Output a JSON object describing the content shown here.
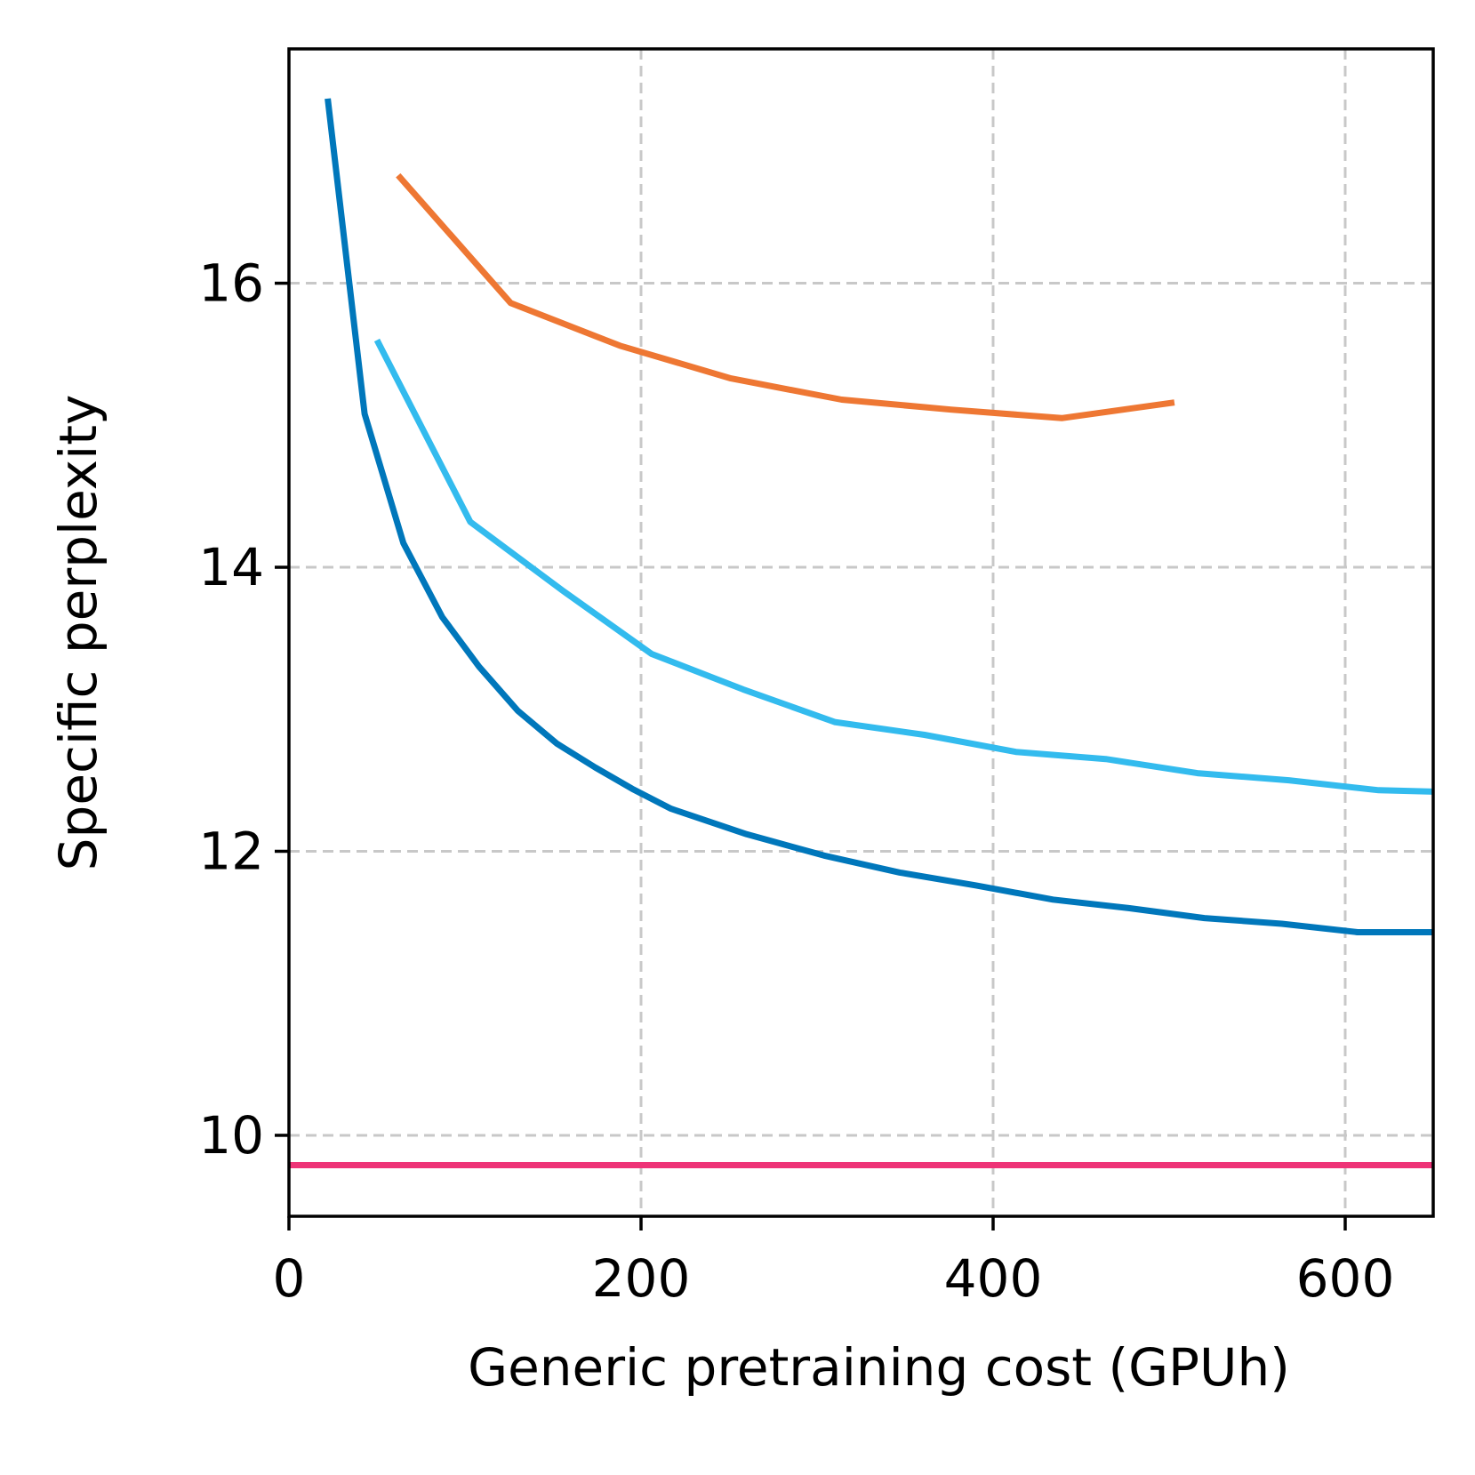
{
  "chart_data": {
    "type": "line",
    "title": "",
    "xlabel": "Generic pretraining cost (GPUh)",
    "ylabel": "Specific perplexity",
    "xlim": [
      0,
      650
    ],
    "ylim": [
      9.43,
      17.65
    ],
    "xticks": [
      0,
      200,
      400,
      600
    ],
    "yticks": [
      10,
      12,
      14,
      16
    ],
    "xtick_labels": [
      "0",
      "200",
      "400",
      "600"
    ],
    "ytick_labels": [
      "10",
      "12",
      "14",
      "16"
    ],
    "grid": true,
    "legend": "none",
    "series": [
      {
        "color": "#0077bb",
        "x": [
          22,
          43,
          65,
          87,
          108,
          130,
          152,
          174,
          195,
          217,
          260,
          304,
          347,
          390,
          434,
          477,
          520,
          564,
          607,
          650
        ],
        "y": [
          17.3,
          15.08,
          14.17,
          13.65,
          13.3,
          12.99,
          12.76,
          12.59,
          12.44,
          12.3,
          12.12,
          11.97,
          11.85,
          11.76,
          11.66,
          11.6,
          11.53,
          11.49,
          11.43,
          11.43
        ]
      },
      {
        "color": "#33bbee",
        "x": [
          50,
          103,
          155,
          206,
          258,
          310,
          361,
          413,
          464,
          516,
          568,
          619,
          650
        ],
        "y": [
          15.6,
          14.32,
          13.84,
          13.39,
          13.14,
          12.91,
          12.82,
          12.7,
          12.65,
          12.55,
          12.5,
          12.43,
          12.42
        ]
      },
      {
        "color": "#ee7733",
        "x": [
          62,
          126,
          188,
          251,
          314,
          376,
          439,
          503
        ],
        "y": [
          16.76,
          15.86,
          15.56,
          15.33,
          15.18,
          15.11,
          15.05,
          15.16
        ]
      },
      {
        "color": "#ee3377",
        "x": [
          0,
          650
        ],
        "y": [
          9.79,
          9.79
        ]
      }
    ]
  }
}
